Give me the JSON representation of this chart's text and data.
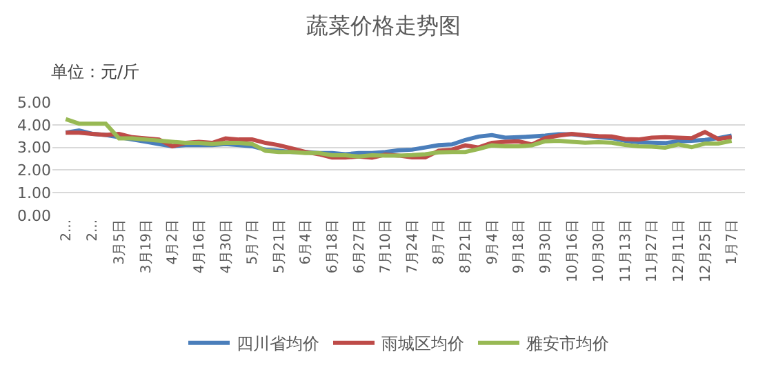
{
  "chart_data": {
    "type": "line",
    "title": "蔬菜价格走势图",
    "annotations": [
      "单位：元/斤"
    ],
    "categories": [
      "2...",
      null,
      "2...",
      null,
      "3月5日",
      null,
      "3月19日",
      null,
      "4月2日",
      null,
      "4月16日",
      null,
      "4月30日",
      null,
      "5月7日",
      null,
      "5月21日",
      null,
      "6月4日",
      null,
      "6月18日",
      null,
      "6月27日",
      null,
      "7月10日",
      null,
      "7月24日",
      null,
      "8月7日",
      null,
      "8月21日",
      null,
      "9月4日",
      null,
      "9月18日",
      null,
      "9月30日",
      null,
      "10月16日",
      null,
      "10月30日",
      null,
      "11月13日",
      null,
      "11月27日",
      null,
      "12月11日",
      null,
      "12月25日",
      null,
      "1月7日"
    ],
    "series": [
      {
        "name": "四川省均价",
        "color": "#4a7ebb",
        "values": [
          3.65,
          3.75,
          3.6,
          3.55,
          3.45,
          3.35,
          3.25,
          3.15,
          3.05,
          3.1,
          3.1,
          3.1,
          3.15,
          3.1,
          3.05,
          2.9,
          2.85,
          2.8,
          2.8,
          2.75,
          2.75,
          2.7,
          2.75,
          2.75,
          2.8,
          2.87,
          2.9,
          3.0,
          3.1,
          3.13,
          3.33,
          3.48,
          3.54,
          3.43,
          3.45,
          3.48,
          3.52,
          3.58,
          3.58,
          3.52,
          3.45,
          3.41,
          3.29,
          3.23,
          3.21,
          3.19,
          3.27,
          3.29,
          3.33,
          3.41,
          3.52
        ]
      },
      {
        "name": "雨城区均价",
        "color": "#be4b48",
        "values": [
          3.65,
          3.65,
          3.6,
          3.55,
          3.6,
          3.45,
          3.4,
          3.35,
          3.05,
          3.2,
          3.25,
          3.2,
          3.4,
          3.35,
          3.35,
          3.2,
          3.1,
          2.95,
          2.8,
          2.7,
          2.55,
          2.55,
          2.6,
          2.55,
          2.68,
          2.64,
          2.56,
          2.56,
          2.85,
          2.9,
          3.09,
          3.0,
          3.2,
          3.25,
          3.27,
          3.13,
          3.41,
          3.52,
          3.6,
          3.54,
          3.5,
          3.48,
          3.37,
          3.35,
          3.43,
          3.45,
          3.43,
          3.41,
          3.68,
          3.37,
          3.45
        ]
      },
      {
        "name": "雅安市均价",
        "color": "#98b954",
        "values": [
          4.25,
          4.05,
          4.05,
          4.05,
          3.4,
          3.4,
          3.35,
          3.3,
          3.25,
          3.2,
          3.2,
          3.15,
          3.2,
          3.2,
          3.15,
          2.85,
          2.8,
          2.8,
          2.75,
          2.75,
          2.65,
          2.65,
          2.6,
          2.65,
          2.64,
          2.64,
          2.66,
          2.7,
          2.78,
          2.8,
          2.8,
          2.93,
          3.09,
          3.05,
          3.05,
          3.09,
          3.27,
          3.29,
          3.25,
          3.21,
          3.23,
          3.21,
          3.11,
          3.05,
          3.03,
          2.99,
          3.13,
          3.01,
          3.17,
          3.17,
          3.29
        ]
      }
    ],
    "ylim": [
      0,
      5
    ],
    "yticks": [
      {
        "value": 0,
        "label": "0.00"
      },
      {
        "value": 1,
        "label": "1.00"
      },
      {
        "value": 2,
        "label": "2.00"
      },
      {
        "value": 3,
        "label": "3.00"
      },
      {
        "value": 4,
        "label": "4.00"
      },
      {
        "value": 5,
        "label": "5.00"
      }
    ],
    "grid": "y",
    "legend": "bottom",
    "marker": "none",
    "line_style": "solid"
  }
}
